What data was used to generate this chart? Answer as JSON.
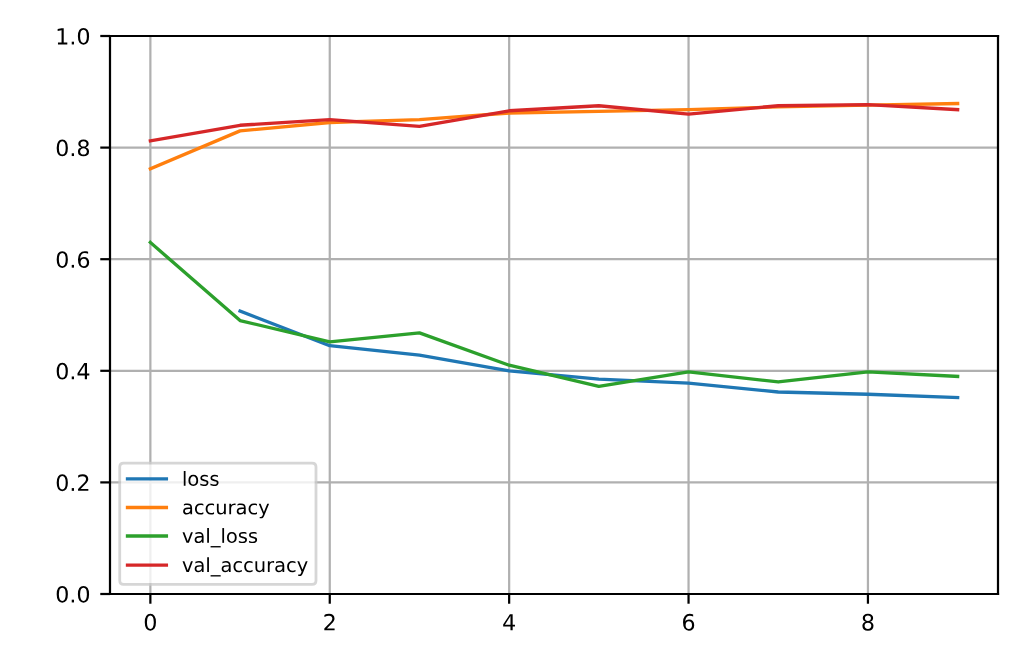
{
  "chart_data": {
    "type": "line",
    "x": [
      0,
      1,
      2,
      3,
      4,
      5,
      6,
      7,
      8,
      9
    ],
    "series": [
      {
        "name": "loss",
        "color": "#1f77b4",
        "values": [
          null,
          0.507,
          0.445,
          0.428,
          0.4,
          0.385,
          0.378,
          0.362,
          0.358,
          0.352
        ]
      },
      {
        "name": "accuracy",
        "color": "#ff7f0e",
        "values": [
          0.762,
          0.83,
          0.845,
          0.85,
          0.862,
          0.865,
          0.868,
          0.873,
          0.876,
          0.879
        ]
      },
      {
        "name": "val_loss",
        "color": "#2ca02c",
        "values": [
          0.63,
          0.49,
          0.452,
          0.468,
          0.41,
          0.372,
          0.398,
          0.38,
          0.398,
          0.39
        ]
      },
      {
        "name": "val_accuracy",
        "color": "#d62728",
        "values": [
          0.812,
          0.84,
          0.85,
          0.838,
          0.866,
          0.875,
          0.86,
          0.875,
          0.877,
          0.868
        ]
      }
    ],
    "xlim": [
      -0.45,
      9.45
    ],
    "xticks": [
      0,
      2,
      4,
      6,
      8
    ],
    "ylim": [
      0.0,
      1.0
    ],
    "yticks": [
      {
        "value": 0.0,
        "label": "0.0"
      },
      {
        "value": 0.2,
        "label": "0.2"
      },
      {
        "value": 0.4,
        "label": "0.4"
      },
      {
        "value": 0.6,
        "label": "0.6"
      },
      {
        "value": 0.8,
        "label": "0.8"
      },
      {
        "value": 1.0,
        "label": "1.0"
      }
    ],
    "grid": true,
    "legend": "bottom left"
  }
}
